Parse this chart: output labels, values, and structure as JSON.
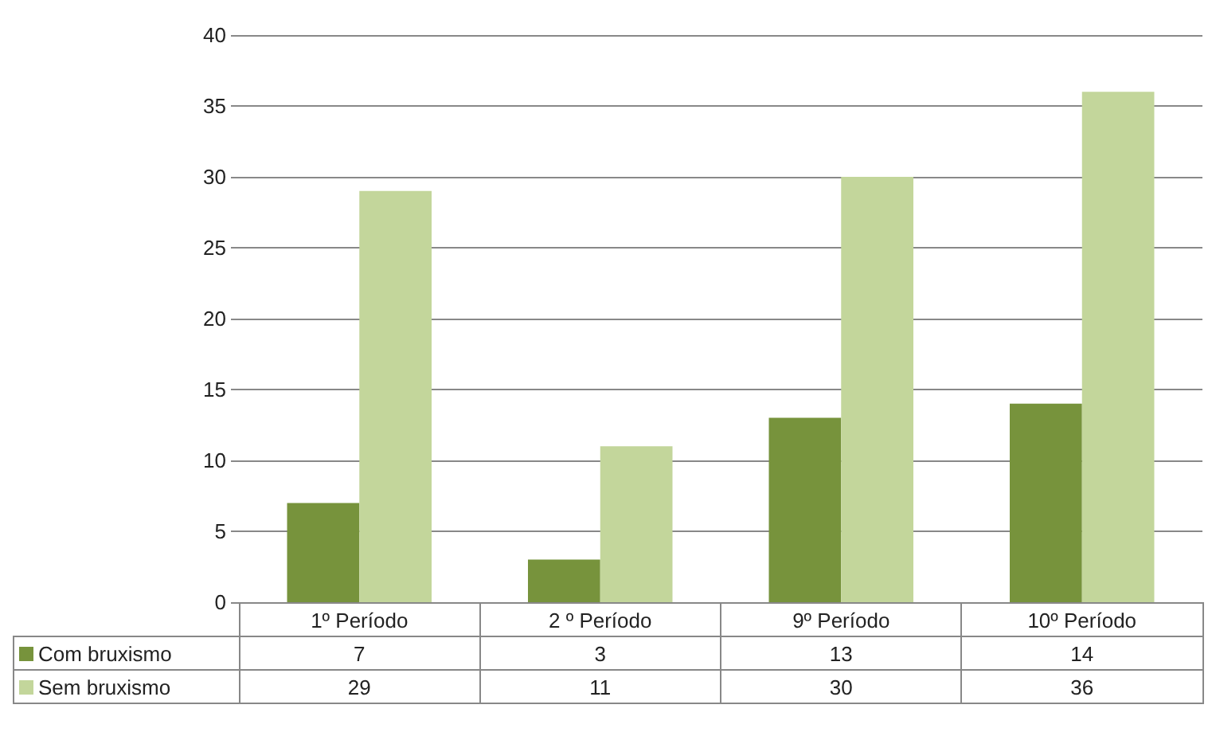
{
  "chart_data": {
    "type": "bar",
    "categories": [
      "1º Período",
      "2 º Período",
      "9º Período",
      "10º Período"
    ],
    "series": [
      {
        "name": "Com bruxismo",
        "color": "#77933c",
        "values": [
          7,
          3,
          13,
          14
        ]
      },
      {
        "name": "Sem bruxismo",
        "color": "#c3d69b",
        "values": [
          29,
          11,
          30,
          36
        ]
      }
    ],
    "ylim": [
      0,
      40
    ],
    "yticks": [
      0,
      5,
      10,
      15,
      20,
      25,
      30,
      35,
      40
    ],
    "grid": "y",
    "legend": "bottom left",
    "data_labels": true
  }
}
